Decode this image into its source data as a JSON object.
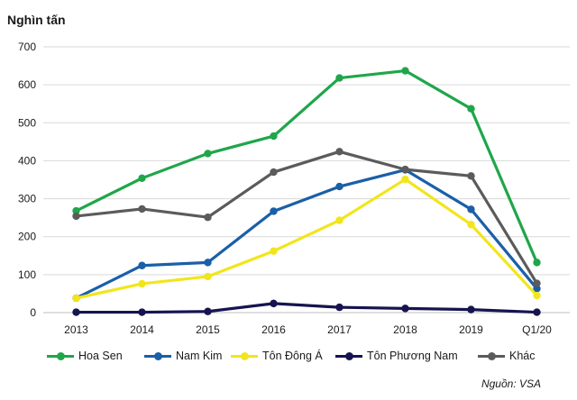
{
  "unit_label": "Nghìn tấn",
  "source": "Nguồn: VSA",
  "chart_data": {
    "type": "line",
    "title": "",
    "ylabel": "Nghìn tấn",
    "xlabel": "",
    "categories": [
      "2013",
      "2014",
      "2015",
      "2016",
      "2017",
      "2018",
      "2019",
      "Q1/20"
    ],
    "ylim": [
      0,
      700
    ],
    "yticks": [
      0,
      100,
      200,
      300,
      400,
      500,
      600,
      700
    ],
    "grid": true,
    "legend_position": "bottom",
    "series": [
      {
        "name": "Hoa Sen",
        "color": "#1fa64a",
        "values": [
          268,
          354,
          419,
          465,
          618,
          637,
          537,
          132
        ]
      },
      {
        "name": "Nam Kim",
        "color": "#1a5fa8",
        "values": [
          38,
          124,
          132,
          267,
          332,
          376,
          272,
          63
        ]
      },
      {
        "name": "Tôn Đông Á",
        "color": "#f2e51c",
        "values": [
          38,
          76,
          95,
          162,
          243,
          351,
          232,
          45
        ]
      },
      {
        "name": "Tôn Phương Nam",
        "color": "#16144f",
        "values": [
          1,
          1,
          3,
          24,
          14,
          11,
          8,
          1
        ]
      },
      {
        "name": "Khác",
        "color": "#5b5b5b",
        "values": [
          254,
          273,
          251,
          370,
          424,
          377,
          360,
          77
        ]
      }
    ]
  }
}
